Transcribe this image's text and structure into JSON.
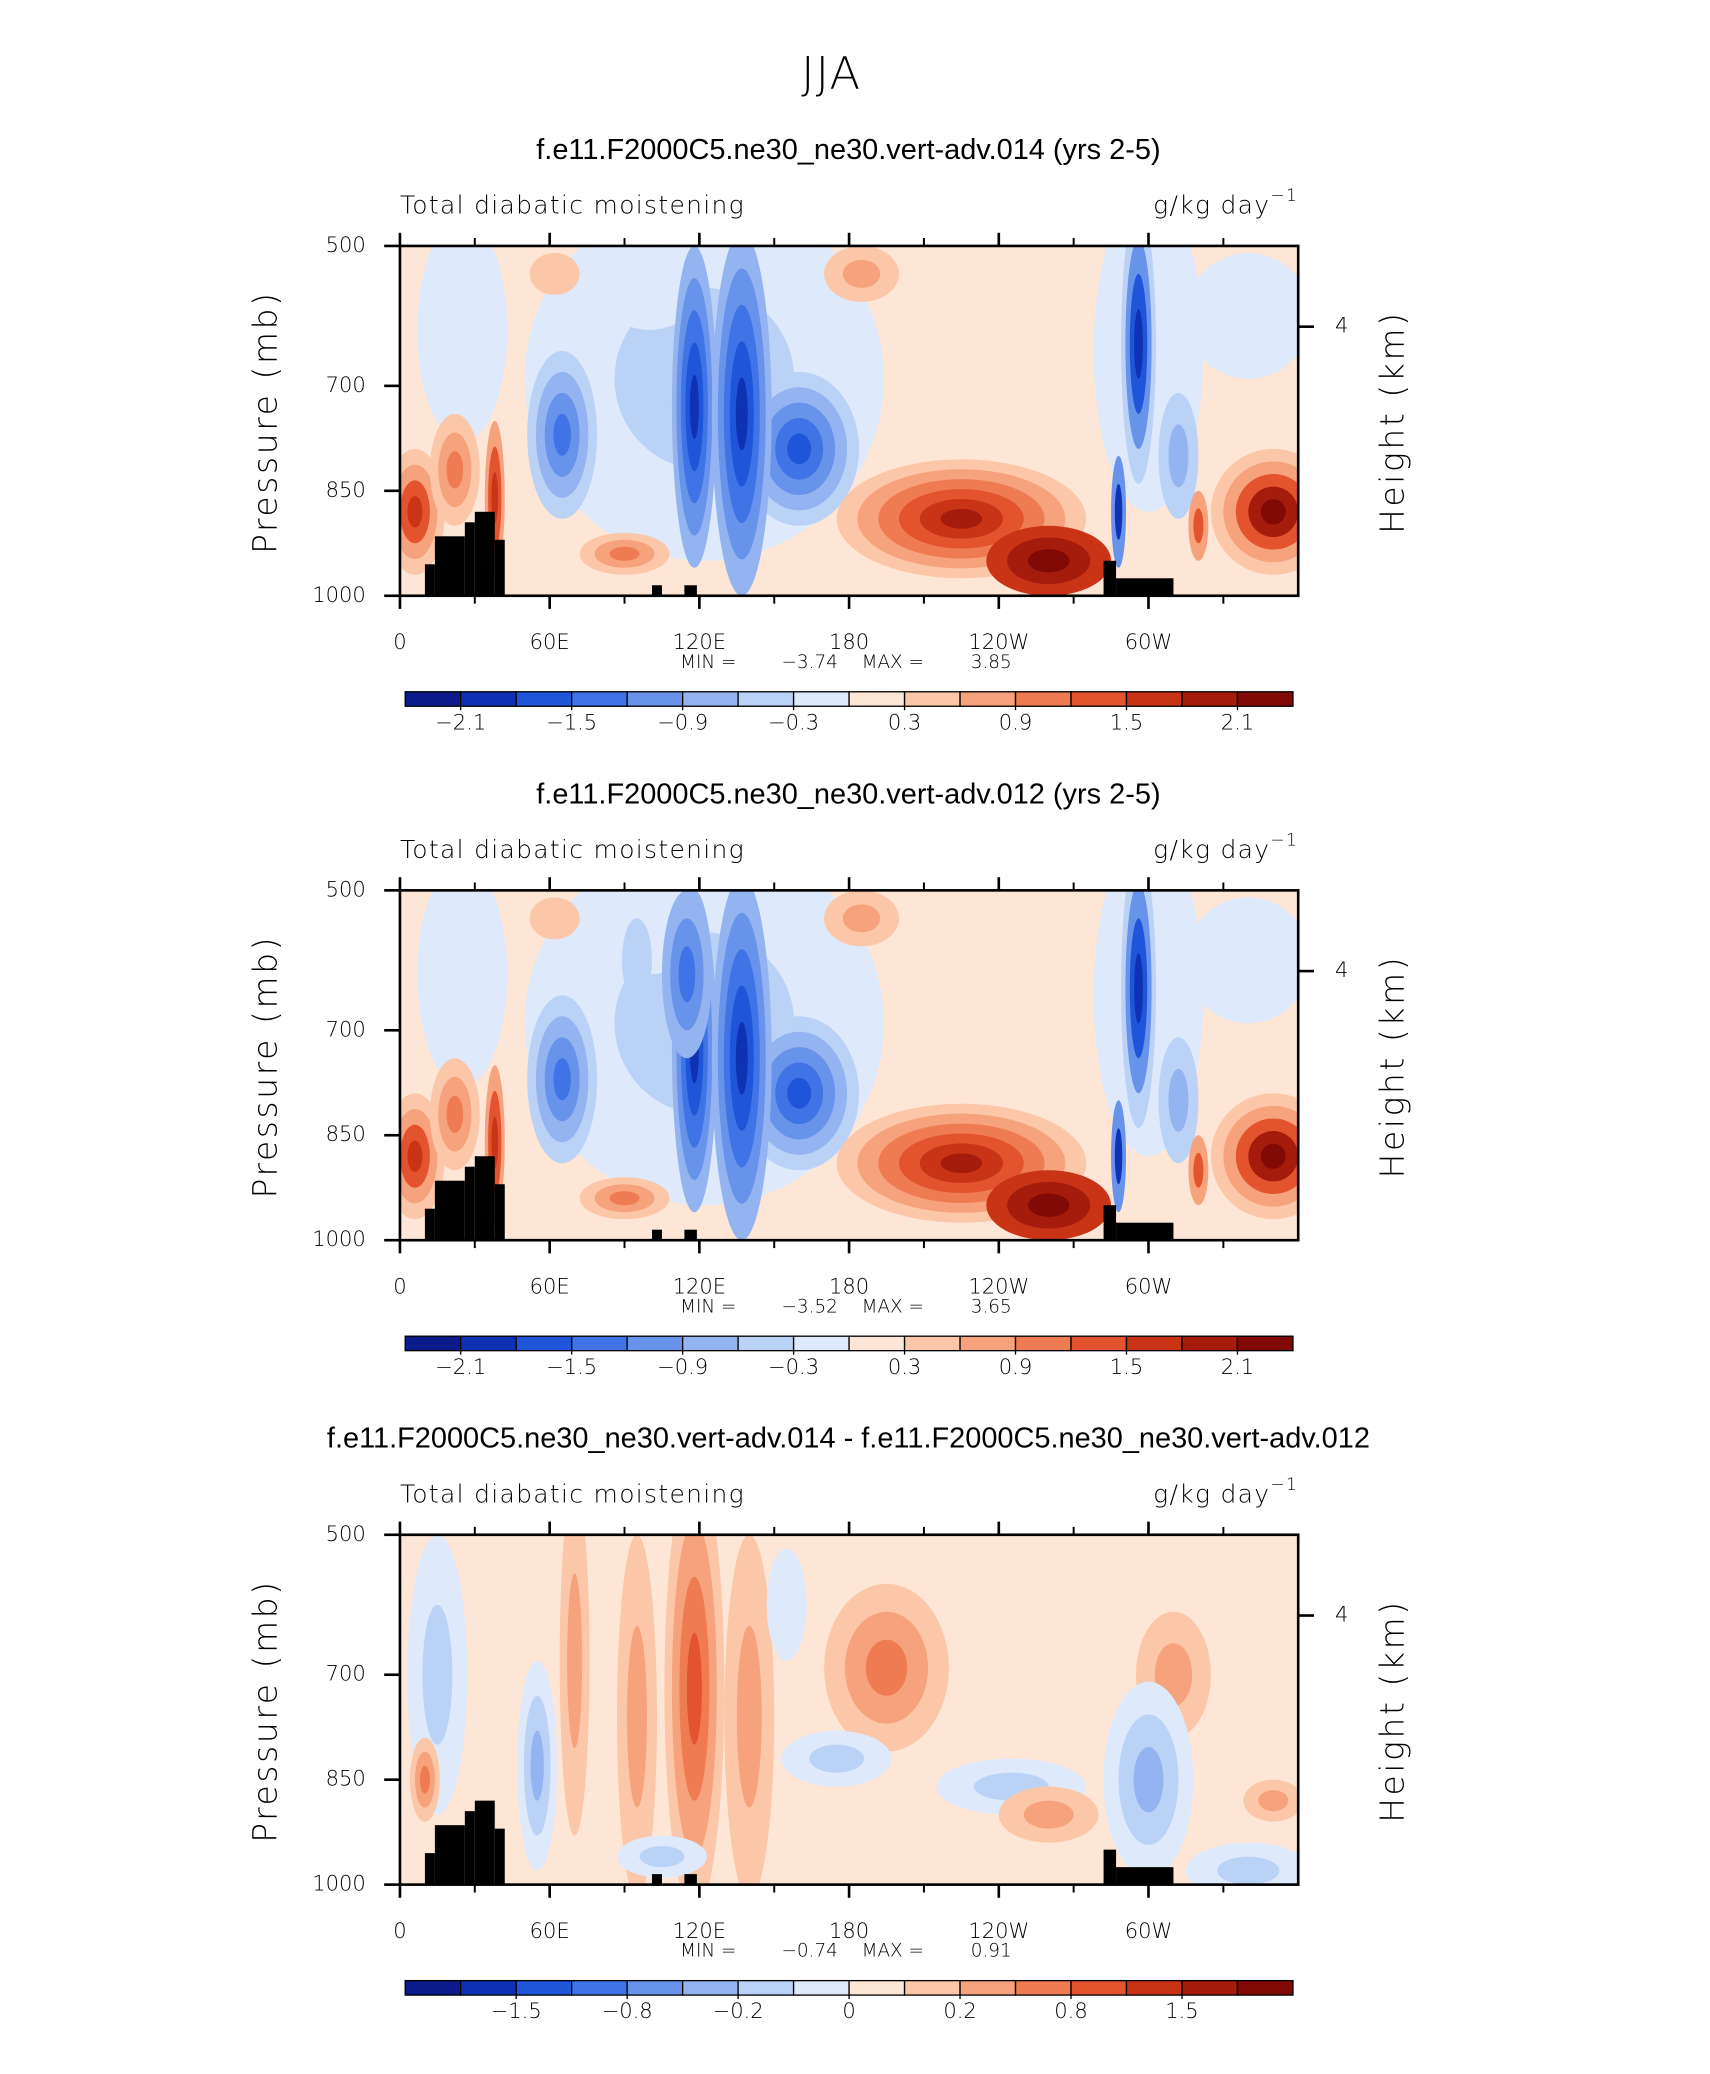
{
  "title": "JJA",
  "chart_data": [
    {
      "type": "contour",
      "title": "f.e11.F2000C5.ne30_ne30.vert-adv.014 (yrs 2-5)",
      "left_label": "Total diabatic moistening",
      "units": "g/kg day",
      "units_exponent": "−1",
      "ylabel": "Pressure (mb)",
      "y2label": "Height (km)",
      "xlim": [
        0,
        360
      ],
      "xticks": [
        0,
        {
          "value": 60,
          "label": "60E"
        },
        {
          "value": 120,
          "label": "120E"
        },
        180,
        {
          "value": 240,
          "label": "120W"
        },
        {
          "value": 300,
          "label": "60W"
        }
      ],
      "xminor": [
        30,
        90,
        150,
        210,
        270,
        330
      ],
      "ylim": [
        500,
        1000
      ],
      "y_inverted": true,
      "yticks": [
        500,
        700,
        850,
        1000
      ],
      "y2lim": [
        5.2,
        0
      ],
      "y2ticks": [
        4
      ],
      "min_text": "MIN =",
      "min": {
        "value": -3.74,
        "label": "−3.74"
      },
      "max_text": "MAX =",
      "max": 3.85,
      "colorbar": {
        "colors": [
          "#0b1b8a",
          "#0f32b4",
          "#1f55d8",
          "#3f73e6",
          "#6893ea",
          "#93b3f1",
          "#bbd2f7",
          "#dee9fb",
          "#fde6d6",
          "#fbc7a8",
          "#f6a27c",
          "#ee7b51",
          "#e2532e",
          "#c93417",
          "#a51c0c",
          "#820a06"
        ],
        "levels": [
          -2.1,
          -1.8,
          -1.5,
          -1.2,
          -0.9,
          -0.6,
          -0.3,
          0,
          0.3,
          0.6,
          0.9,
          1.2,
          1.5,
          1.8,
          2.1
        ],
        "ticks": [
          {
            "value": -2.1,
            "label": "−2.1"
          },
          {
            "value": -1.5,
            "label": "−1.5"
          },
          {
            "value": -0.9,
            "label": "−0.9"
          },
          {
            "value": -0.3,
            "label": "−0.3"
          },
          0.3,
          0.9,
          1.5,
          2.1
        ]
      }
    },
    {
      "type": "contour",
      "title": "f.e11.F2000C5.ne30_ne30.vert-adv.012 (yrs 2-5)",
      "left_label": "Total diabatic moistening",
      "units": "g/kg day",
      "units_exponent": "−1",
      "ylabel": "Pressure (mb)",
      "y2label": "Height (km)",
      "xlim": [
        0,
        360
      ],
      "xticks": [
        0,
        {
          "value": 60,
          "label": "60E"
        },
        {
          "value": 120,
          "label": "120E"
        },
        180,
        {
          "value": 240,
          "label": "120W"
        },
        {
          "value": 300,
          "label": "60W"
        }
      ],
      "xminor": [
        30,
        90,
        150,
        210,
        270,
        330
      ],
      "ylim": [
        500,
        1000
      ],
      "y_inverted": true,
      "yticks": [
        500,
        700,
        850,
        1000
      ],
      "y2lim": [
        5.2,
        0
      ],
      "y2ticks": [
        4
      ],
      "min_text": "MIN =",
      "min": {
        "value": -3.52,
        "label": "−3.52"
      },
      "max_text": "MAX =",
      "max": 3.65,
      "colorbar": {
        "colors": [
          "#0b1b8a",
          "#0f32b4",
          "#1f55d8",
          "#3f73e6",
          "#6893ea",
          "#93b3f1",
          "#bbd2f7",
          "#dee9fb",
          "#fde6d6",
          "#fbc7a8",
          "#f6a27c",
          "#ee7b51",
          "#e2532e",
          "#c93417",
          "#a51c0c",
          "#820a06"
        ],
        "levels": [
          -2.1,
          -1.8,
          -1.5,
          -1.2,
          -0.9,
          -0.6,
          -0.3,
          0,
          0.3,
          0.6,
          0.9,
          1.2,
          1.5,
          1.8,
          2.1
        ],
        "ticks": [
          {
            "value": -2.1,
            "label": "−2.1"
          },
          {
            "value": -1.5,
            "label": "−1.5"
          },
          {
            "value": -0.9,
            "label": "−0.9"
          },
          {
            "value": -0.3,
            "label": "−0.3"
          },
          0.3,
          0.9,
          1.5,
          2.1
        ]
      }
    },
    {
      "type": "contour",
      "title": "f.e11.F2000C5.ne30_ne30.vert-adv.014 - f.e11.F2000C5.ne30_ne30.vert-adv.012",
      "left_label": "Total diabatic moistening",
      "units": "g/kg day",
      "units_exponent": "−1",
      "ylabel": "Pressure (mb)",
      "y2label": "Height (km)",
      "xlim": [
        0,
        360
      ],
      "xticks": [
        0,
        {
          "value": 60,
          "label": "60E"
        },
        {
          "value": 120,
          "label": "120E"
        },
        180,
        {
          "value": 240,
          "label": "120W"
        },
        {
          "value": 300,
          "label": "60W"
        }
      ],
      "xminor": [
        30,
        90,
        150,
        210,
        270,
        330
      ],
      "ylim": [
        500,
        1000
      ],
      "y_inverted": true,
      "yticks": [
        500,
        700,
        850,
        1000
      ],
      "y2lim": [
        5.2,
        0
      ],
      "y2ticks": [
        4
      ],
      "min_text": "MIN =",
      "min": {
        "value": -0.74,
        "label": "−0.74"
      },
      "max_text": "MAX =",
      "max": 0.91,
      "colorbar": {
        "colors": [
          "#0b1b8a",
          "#0f32b4",
          "#1f55d8",
          "#3f73e6",
          "#6893ea",
          "#93b3f1",
          "#bbd2f7",
          "#dee9fb",
          "#fde6d6",
          "#fbc7a8",
          "#f6a27c",
          "#ee7b51",
          "#e2532e",
          "#c93417",
          "#a51c0c",
          "#820a06"
        ],
        "levels": [
          -2,
          -1.5,
          -1.2,
          -0.8,
          -0.5,
          -0.2,
          -0.1,
          0,
          0.1,
          0.2,
          0.5,
          0.8,
          1.2,
          1.5,
          2
        ],
        "ticks": [
          {
            "value": -1.5,
            "label": "−1.5"
          },
          {
            "value": -0.8,
            "label": "−0.8"
          },
          {
            "value": -0.2,
            "label": "−0.2"
          },
          0,
          0.2,
          0.8,
          1.5
        ]
      }
    }
  ]
}
